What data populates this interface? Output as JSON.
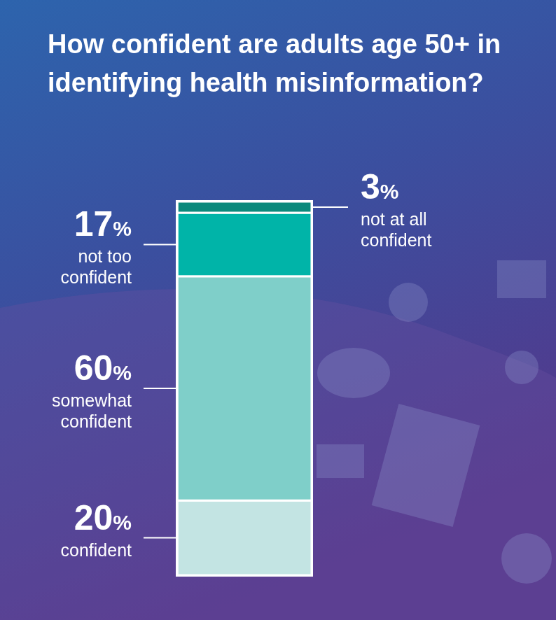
{
  "chart_data": {
    "type": "bar",
    "title": "How confident are adults age 50+ in identifying health misinformation?",
    "categories": [
      null
    ],
    "stacked": true,
    "data_labels": true,
    "tick_labels": false,
    "ylim": [
      0,
      100
    ],
    "series": [
      {
        "name": "confident",
        "color": "#c3e4e3",
        "values": [
          20
        ],
        "value_labels": [
          "20%"
        ]
      },
      {
        "name": "somewhat confident",
        "color": "#7fcfc9",
        "values": [
          60
        ],
        "value_labels": [
          "60%"
        ]
      },
      {
        "name": "not too confident",
        "color": "#00b4a8",
        "values": [
          17
        ],
        "value_labels": [
          "17%"
        ]
      },
      {
        "name": "not at all confident",
        "color": "#0b8a7c",
        "values": [
          3
        ],
        "value_labels": [
          "3%"
        ]
      }
    ]
  }
}
